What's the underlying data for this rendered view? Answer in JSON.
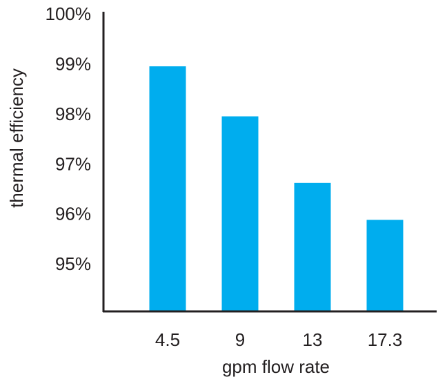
{
  "chart_data": {
    "type": "bar",
    "categories": [
      "4.5",
      "9",
      "13",
      "17.3"
    ],
    "values": [
      98.95,
      97.95,
      96.62,
      95.88
    ],
    "xlabel": "gpm flow rate",
    "ylabel": "thermal efficiency",
    "ylim": [
      94.05,
      100
    ],
    "yticks": [
      95,
      96,
      97,
      98,
      99,
      100
    ],
    "ytick_labels": [
      "95%",
      "96%",
      "97%",
      "98%",
      "99%",
      "100%"
    ],
    "bar_color": "#00adee",
    "axis_color": "#231f20",
    "grid": false,
    "legend": "none"
  }
}
